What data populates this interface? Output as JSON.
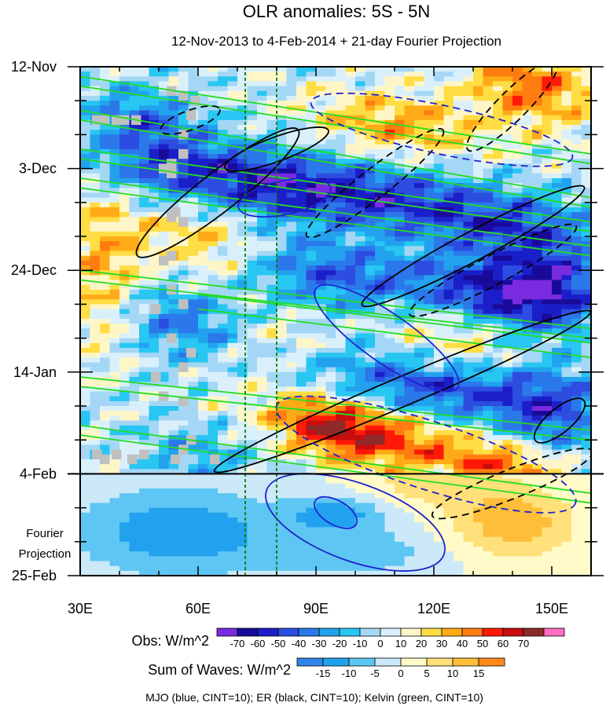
{
  "chart_data": {
    "type": "heatmap",
    "title": "OLR anomalies: 5S - 5N",
    "subtitle": "12-Nov-2013 to 4-Feb-2014 + 21-day Fourier Projection",
    "x_axis": {
      "label": "",
      "range_deg_east": [
        30,
        160
      ],
      "ticks": [
        {
          "value": 30,
          "label": "30E"
        },
        {
          "value": 60,
          "label": "60E"
        },
        {
          "value": 90,
          "label": "90E"
        },
        {
          "value": 120,
          "label": "120E"
        },
        {
          "value": 150,
          "label": "150E"
        }
      ]
    },
    "y_axis": {
      "label": "",
      "range_days_from_start": [
        0,
        105
      ],
      "direction": "time increases downward",
      "ticks": [
        {
          "value": 0,
          "label": "12-Nov"
        },
        {
          "value": 21,
          "label": "3-Dec"
        },
        {
          "value": 42,
          "label": "24-Dec"
        },
        {
          "value": 63,
          "label": "14-Jan"
        },
        {
          "value": 84,
          "label": "4-Feb"
        },
        {
          "value": 105,
          "label": "25-Feb"
        }
      ]
    },
    "projection_label_lines": [
      "Fourier",
      "Projection"
    ],
    "observation_end_day": 84,
    "reference_longitudes": [
      72,
      80
    ],
    "obs_colorbar": {
      "label": "Obs: W/m^2",
      "levels": [
        -70,
        -60,
        -50,
        -40,
        -30,
        -20,
        -10,
        0,
        10,
        20,
        30,
        40,
        50,
        60,
        70
      ],
      "colors": [
        "#7a2be0",
        "#1a0a9a",
        "#1b1fc9",
        "#2c4de0",
        "#2a78ea",
        "#22a2ee",
        "#28c6f2",
        "#a4d7f5",
        "#d9f0fb",
        "#fff6c8",
        "#ffdd44",
        "#ffab18",
        "#ff7c10",
        "#ff1a08",
        "#c80d0d",
        "#8f2a2a",
        "#ff6ec3"
      ]
    },
    "waves_colorbar": {
      "label": "Sum of Waves: W/m^2",
      "levels": [
        -15,
        -10,
        -5,
        0,
        5,
        10,
        15
      ],
      "colors": [
        "#2f86ea",
        "#22a2ee",
        "#5ec6f3",
        "#cbe9f8",
        "#fffac8",
        "#ffe07a",
        "#ffbe3a",
        "#ff8a1a"
      ]
    },
    "missing_data_color": "#c0c0c0",
    "footer": "MJO (blue, CINT=10); ER (black, CINT=10); Kelvin (green, CINT=10)",
    "wave_contours": {
      "MJO": {
        "color": "#1e22d0",
        "cint": 10
      },
      "ER": {
        "color": "#000000",
        "cint": 10
      },
      "Kelvin": {
        "color": "#22dd22",
        "cint": 10
      }
    }
  }
}
